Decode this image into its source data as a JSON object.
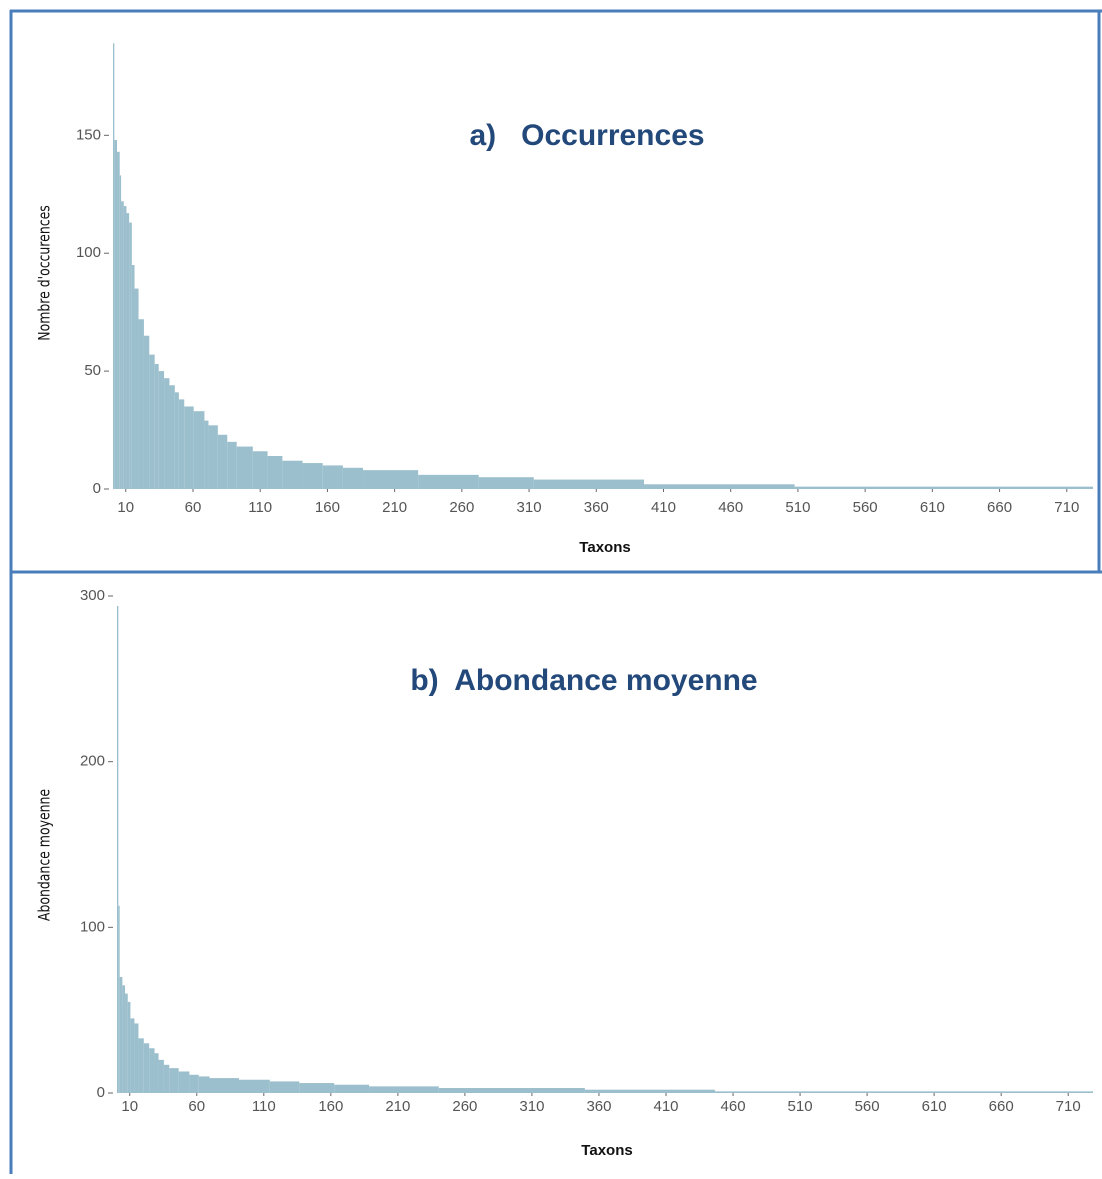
{
  "chart_data": [
    {
      "type": "step",
      "title": "a)   Occurrences",
      "x_label": "Taxons",
      "y_label": "Nombre d'occurences",
      "color": "#9bbfcc",
      "x": [
        1,
        2,
        4,
        6,
        7,
        9,
        11,
        13,
        15,
        17,
        20,
        24,
        28,
        32,
        35,
        39,
        43,
        47,
        50,
        54,
        61,
        69,
        72,
        79,
        86,
        93,
        105,
        116,
        127,
        142,
        157,
        172,
        187,
        228,
        273,
        314,
        396,
        508
      ],
      "values": [
        189,
        148,
        143,
        133,
        122,
        120,
        117,
        113,
        95,
        85,
        72,
        65,
        57,
        53,
        50,
        47,
        44,
        41,
        38,
        35,
        33,
        29,
        27,
        23,
        20,
        18,
        16,
        14,
        12,
        11,
        10,
        9,
        8,
        6,
        5,
        4,
        2,
        1
      ],
      "xlim": [
        0.5,
        729.5
      ],
      "xticks": [
        10,
        60,
        110,
        160,
        210,
        260,
        310,
        360,
        410,
        460,
        510,
        560,
        610,
        660,
        710
      ],
      "ylim": [
        0,
        190
      ],
      "yticks": [
        0,
        50,
        100,
        150
      ]
    },
    {
      "type": "step",
      "title": "b)  Abondance moyenne",
      "x_label": "Taxons",
      "y_label": "Abondance moyenne",
      "color": "#9bbfcc",
      "x": [
        1,
        2,
        3,
        5,
        7,
        9,
        11,
        14,
        17,
        21,
        25,
        29,
        32,
        36,
        40,
        47,
        55,
        62,
        70,
        92,
        115,
        137,
        163,
        189,
        241,
        350,
        447
      ],
      "values": [
        294,
        113,
        70,
        65,
        60,
        55,
        45,
        42,
        33,
        30,
        27,
        24,
        20,
        17,
        15,
        13,
        11,
        10,
        9,
        8,
        7,
        6,
        5,
        4,
        3,
        2,
        1
      ],
      "xlim": [
        0.5,
        728.5
      ],
      "xticks": [
        10,
        60,
        110,
        160,
        210,
        260,
        310,
        360,
        410,
        460,
        510,
        560,
        610,
        660,
        710
      ],
      "ylim": [
        0,
        300
      ],
      "yticks": [
        0,
        100,
        200,
        300
      ]
    }
  ]
}
